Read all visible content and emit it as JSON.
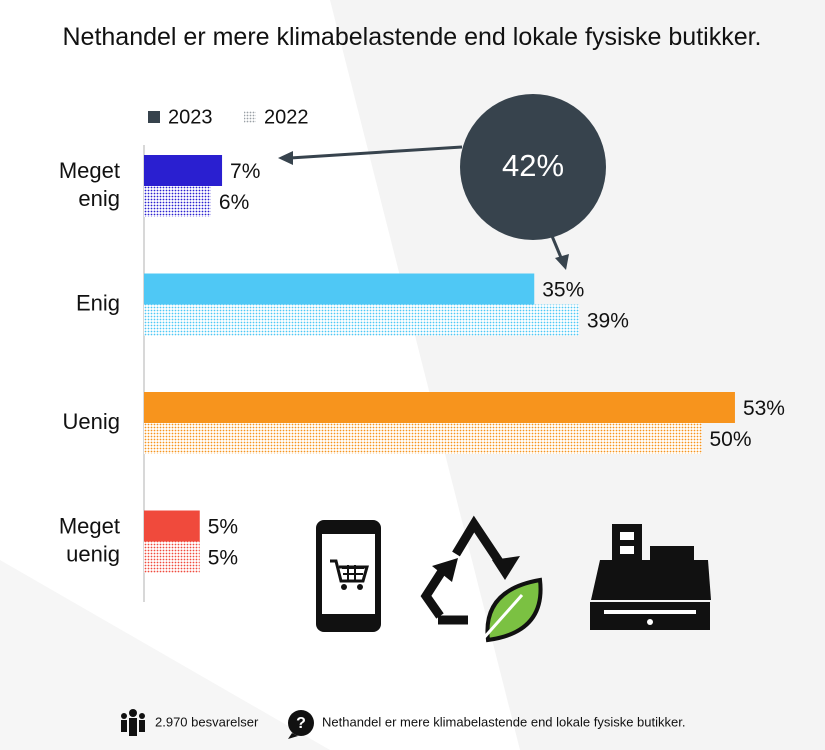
{
  "chart_data": {
    "type": "bar",
    "orientation": "horizontal",
    "title": "Nethandel er mere klimabelastende end lokale fysiske butikker.",
    "categories": [
      "Meget enig",
      "Enig",
      "Uenig",
      "Meget uenig"
    ],
    "category_colors": [
      "#2a1fd0",
      "#4fc8f5",
      "#f7941d",
      "#f04a3c"
    ],
    "series": [
      {
        "name": "2023",
        "color": "#37434d",
        "pattern": "solid",
        "values": [
          7,
          35,
          53,
          5
        ],
        "value_labels": [
          "7%",
          "35%",
          "53%",
          "5%"
        ]
      },
      {
        "name": "2022",
        "color": "#9aa0a6",
        "pattern": "dotted",
        "values": [
          6,
          39,
          50,
          5
        ],
        "value_labels": [
          "6%",
          "39%",
          "50%",
          "5%"
        ]
      }
    ],
    "annotation": "42%",
    "footer": {
      "respondents": "2.970 besvarelser",
      "question": "Nethandel er mere klimabelastende end lokale fysiske butikker."
    }
  }
}
